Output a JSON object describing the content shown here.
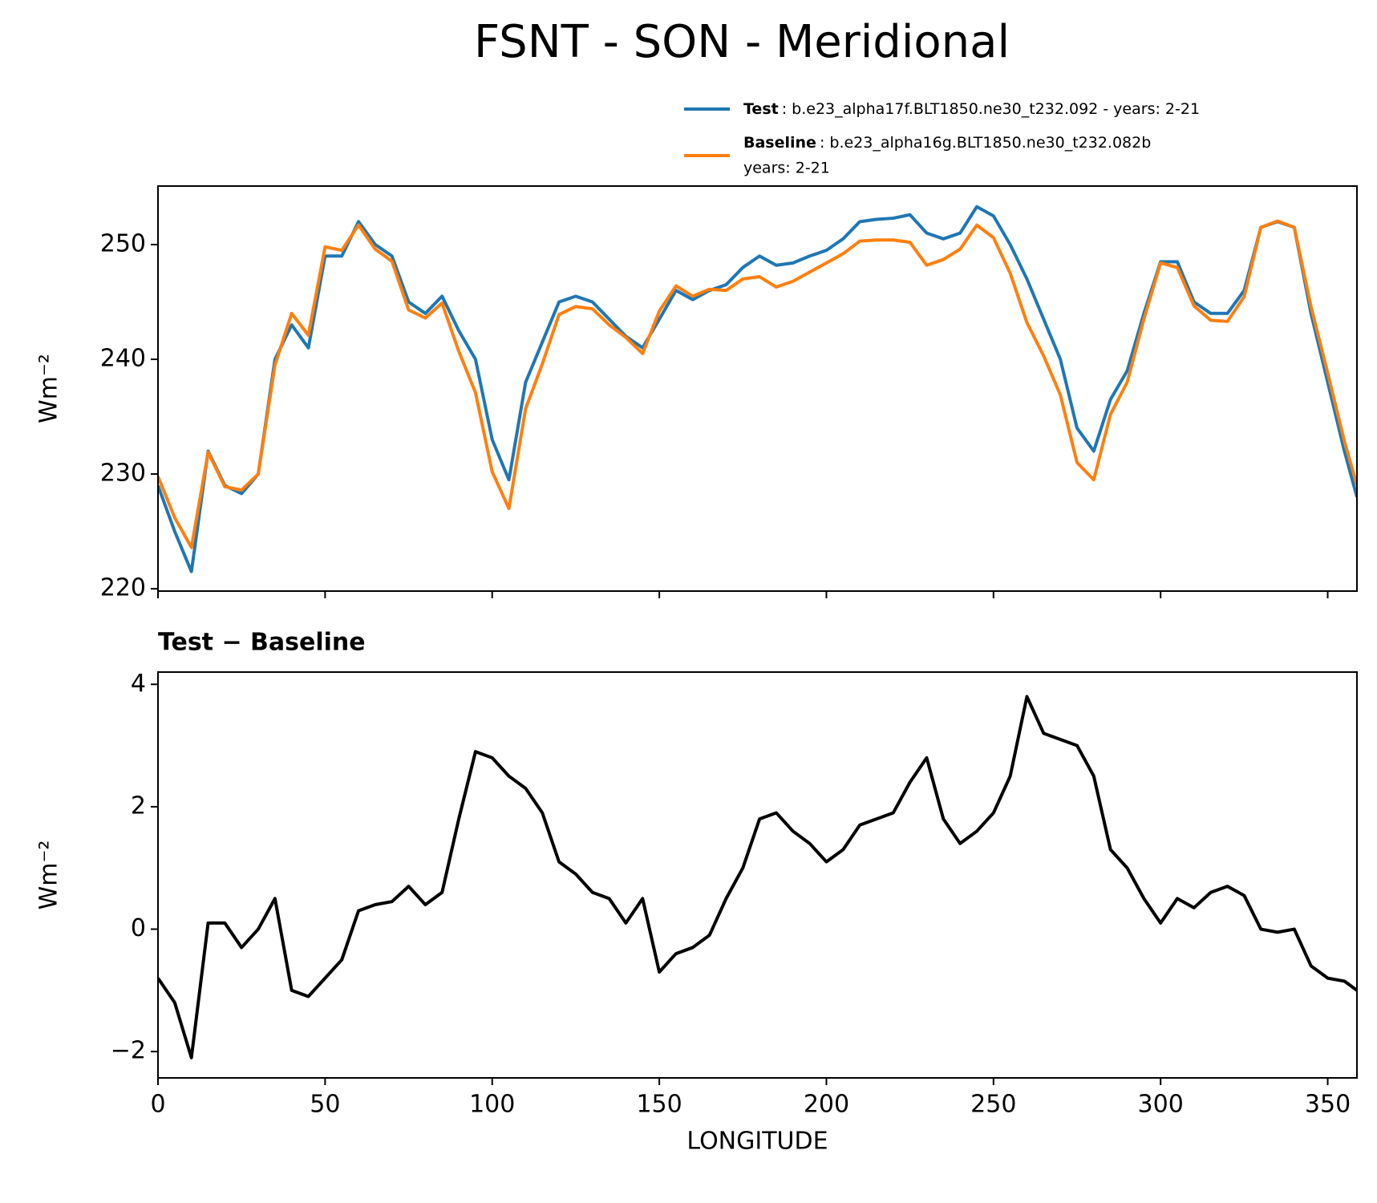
{
  "title": "FSNT - SON - Meridional",
  "chart_data": [
    {
      "type": "line",
      "ylabel": "Wm⁻²",
      "xlim": [
        0,
        358.75
      ],
      "ylim": [
        219.8,
        255.1
      ],
      "xticks": [
        0,
        50,
        100,
        150,
        200,
        250,
        300,
        350
      ],
      "yticks": [
        220,
        230,
        240,
        250
      ],
      "x": [
        0,
        5,
        10,
        15,
        20,
        25,
        30,
        35,
        40,
        45,
        50,
        55,
        60,
        65,
        70,
        75,
        80,
        85,
        90,
        95,
        100,
        105,
        110,
        115,
        120,
        125,
        130,
        135,
        140,
        145,
        150,
        155,
        160,
        165,
        170,
        175,
        180,
        185,
        190,
        195,
        200,
        205,
        210,
        215,
        220,
        225,
        230,
        235,
        240,
        245,
        250,
        255,
        260,
        265,
        270,
        275,
        280,
        285,
        290,
        295,
        300,
        305,
        310,
        315,
        320,
        325,
        330,
        335,
        340,
        345,
        350,
        355,
        358.75
      ],
      "series": [
        {
          "name": "Test",
          "description": [
            ": b.e23_alpha17f.BLT1850.ne30_t232.092 - years: 2-21"
          ],
          "color": "#1f77b4",
          "values": [
            229,
            225,
            221.5,
            232,
            229,
            228.3,
            230,
            240,
            243,
            241,
            249,
            249,
            252,
            250,
            249,
            245,
            244,
            245.5,
            242.5,
            240,
            233,
            229.5,
            238,
            241.5,
            245,
            245.5,
            245,
            243.5,
            242,
            241,
            243.5,
            246,
            245.2,
            246,
            246.5,
            248,
            249,
            248.2,
            248.4,
            249,
            249.5,
            250.5,
            252,
            252.2,
            252.3,
            252.6,
            251,
            250.5,
            251,
            253.3,
            252.5,
            250,
            247,
            243.5,
            240,
            234,
            232,
            236.5,
            239,
            244,
            248.5,
            248.5,
            245,
            244,
            244,
            246,
            251.5,
            252,
            251.5,
            244,
            238,
            232,
            228
          ]
        },
        {
          "name": "Baseline",
          "description": [
            ": b.e23_alpha16g.BLT1850.ne30_t232.082b",
            "years: 2-21"
          ],
          "color": "#ff7f0e",
          "values": [
            229.8,
            226.2,
            223.6,
            231.9,
            228.9,
            228.6,
            230,
            239.5,
            244,
            242.1,
            249.8,
            249.5,
            251.7,
            249.6,
            248.55,
            244.3,
            243.6,
            244.9,
            240.7,
            237.1,
            230.2,
            227,
            235.7,
            239.6,
            243.9,
            244.6,
            244.4,
            243,
            241.9,
            240.5,
            244.2,
            246.4,
            245.5,
            246.1,
            246,
            247,
            247.2,
            246.3,
            246.8,
            247.6,
            248.4,
            249.2,
            250.3,
            250.4,
            250.4,
            250.2,
            248.2,
            248.7,
            249.6,
            251.7,
            250.6,
            247.5,
            243.2,
            240.3,
            236.9,
            231,
            229.5,
            235.2,
            238,
            243.5,
            248.4,
            248,
            244.65,
            243.4,
            243.3,
            245.45,
            251.5,
            252.05,
            251.5,
            244.6,
            238.8,
            232.85,
            229
          ]
        }
      ]
    },
    {
      "type": "line",
      "title": "Test − Baseline",
      "xlabel": "LONGITUDE",
      "ylabel": "Wm⁻²",
      "xlim": [
        0,
        358.75
      ],
      "ylim": [
        -2.43,
        4.2
      ],
      "xticks": [
        0,
        50,
        100,
        150,
        200,
        250,
        300,
        350
      ],
      "yticks": [
        {
          "value": -2,
          "label": "−2"
        },
        0,
        2,
        4
      ],
      "x": [
        0,
        5,
        10,
        15,
        20,
        25,
        30,
        35,
        40,
        45,
        50,
        55,
        60,
        65,
        70,
        75,
        80,
        85,
        90,
        95,
        100,
        105,
        110,
        115,
        120,
        125,
        130,
        135,
        140,
        145,
        150,
        155,
        160,
        165,
        170,
        175,
        180,
        185,
        190,
        195,
        200,
        205,
        210,
        215,
        220,
        225,
        230,
        235,
        240,
        245,
        250,
        255,
        260,
        265,
        270,
        275,
        280,
        285,
        290,
        295,
        300,
        305,
        310,
        315,
        320,
        325,
        330,
        335,
        340,
        345,
        350,
        355,
        358.75
      ],
      "series": [
        {
          "color": "#000000",
          "values": [
            -0.8,
            -1.2,
            -2.1,
            0.1,
            0.1,
            -0.3,
            0,
            0.5,
            -1.0,
            -1.1,
            -0.8,
            -0.5,
            0.3,
            0.4,
            0.45,
            0.7,
            0.4,
            0.6,
            1.8,
            2.9,
            2.8,
            2.5,
            2.3,
            1.9,
            1.1,
            0.9,
            0.6,
            0.5,
            0.1,
            0.5,
            -0.7,
            -0.4,
            -0.3,
            -0.1,
            0.5,
            1.0,
            1.8,
            1.9,
            1.6,
            1.4,
            1.1,
            1.3,
            1.7,
            1.8,
            1.9,
            2.4,
            2.8,
            1.8,
            1.4,
            1.6,
            1.9,
            2.5,
            3.8,
            3.2,
            3.1,
            3.0,
            2.5,
            1.3,
            1.0,
            0.5,
            0.1,
            0.5,
            0.35,
            0.6,
            0.7,
            0.55,
            0.0,
            -0.05,
            0.0,
            -0.6,
            -0.8,
            -0.85,
            -1.0
          ]
        }
      ]
    }
  ]
}
